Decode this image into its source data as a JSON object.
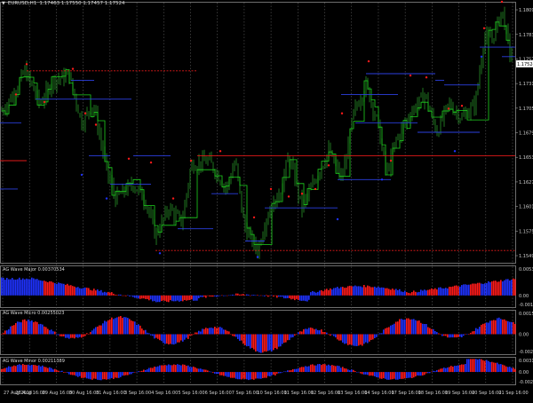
{
  "header": {
    "symbol_timeframe": "EURUSD,H1",
    "ohlc": "1.17463 1.17550 1.17457 1.17524",
    "menu_arrow_icon": "triangle-down-icon"
  },
  "colors": {
    "background": "#000000",
    "grid": "#5a5a5a",
    "candle": "#2ea82e",
    "wave_line": "#1ed21e",
    "level_blue": "#2b3fe0",
    "level_red": "#e01a1a",
    "buffer_blue": "#1f32ff",
    "buffer_red": "#ff1a1a",
    "current_price_label_bg": "#ffffff",
    "axis_text": "#d0d0d0"
  },
  "main_chart": {
    "price_axis": [
      "1.18095",
      "1.17835",
      "1.17575",
      "1.17315",
      "1.17055",
      "1.16795",
      "1.16535",
      "1.16275",
      "1.16015",
      "1.15755",
      "1.15495"
    ],
    "current_price_label": "1.17524",
    "price_range": [
      1.1542,
      1.1818
    ]
  },
  "indicators": [
    {
      "label": "AG Wave Major 0.00370534",
      "scale_top": "0.00532108",
      "scale_zero": "0.00",
      "scale_bottom": "-0.00114455"
    },
    {
      "label": "AG Wave Micro 0.00255023",
      "scale_top": "0.0015774",
      "scale_zero": "0.00",
      "scale_bottom": "-0.00279648"
    },
    {
      "label": "AG Wave Minor 0.00211389",
      "scale_top": "0.00317305",
      "scale_zero": "0.00",
      "scale_bottom": "-0.00239"
    }
  ],
  "time_axis": [
    "27 Aug 2018",
    "28 Aug 16:00",
    "29 Aug 16:00",
    "30 Aug 16:00",
    "31 Aug 16:00",
    "3 Sep 16:00",
    "4 Sep 16:00",
    "5 Sep 16:00",
    "6 Sep 16:00",
    "7 Sep 16:00",
    "10 Sep 16:00",
    "11 Sep 16:00",
    "12 Sep 16:00",
    "13 Sep 16:00",
    "14 Sep 16:00",
    "17 Sep 16:00",
    "18 Sep 16:00",
    "19 Sep 16:00",
    "20 Sep 16:00",
    "21 Sep 16:00"
  ]
}
